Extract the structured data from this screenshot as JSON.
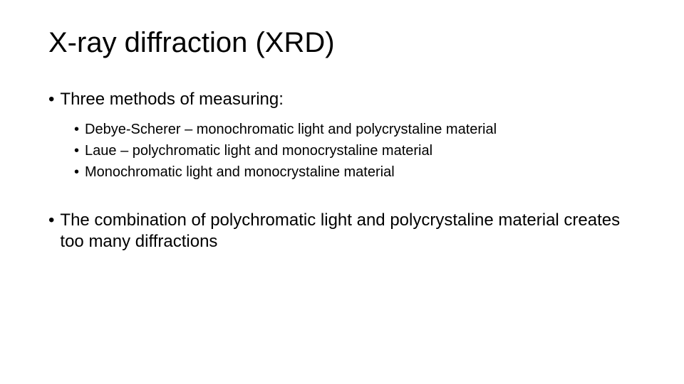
{
  "slide": {
    "title": "X-ray diffraction (XRD)",
    "background_color": "#ffffff",
    "text_color": "#000000",
    "title_fontsize": 40,
    "body_fontsize_l1": 24,
    "body_fontsize_l2": 20,
    "font_family": "Arial, Helvetica, sans-serif",
    "bullets": [
      {
        "level": 1,
        "text": "Three methods of measuring:",
        "children": [
          {
            "level": 2,
            "text": "Debye-Scherer – monochromatic light and polycrystaline material"
          },
          {
            "level": 2,
            "text": "Laue – polychromatic light and monocrystaline material"
          },
          {
            "level": 2,
            "text": "Monochromatic light and monocrystaline material"
          }
        ]
      },
      {
        "level": 1,
        "text": "The combination of polychromatic light and polycrystaline material creates too many diffractions"
      }
    ]
  }
}
